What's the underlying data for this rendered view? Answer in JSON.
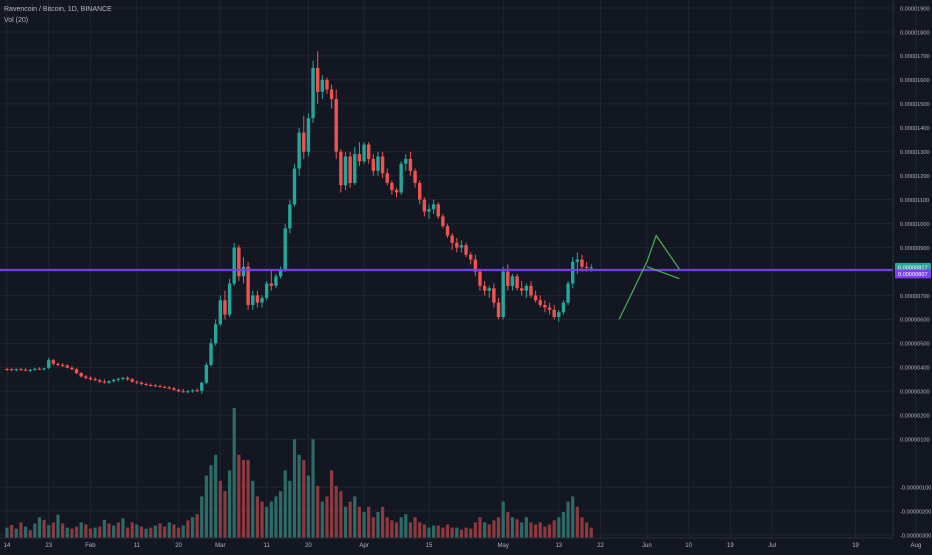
{
  "legend": {
    "title": "Ravencoin / Bitcoin, 1D, BINANCE",
    "indicator": "Vol (20)"
  },
  "colors": {
    "background": "#131722",
    "grid": "#1f2433",
    "up": "#26a69a",
    "down": "#ef5350",
    "vol_up": "#2e6b66",
    "vol_down": "#8b3a3f",
    "hline": "#7b3ff2",
    "pattern": "#4caf50",
    "axis_text": "#b2b5be",
    "price_tag_bg": "#26a69a",
    "line_tag_bg": "#7b3ff2"
  },
  "chart_data": {
    "type": "candlestick",
    "symbol": "Ravencoin / Bitcoin",
    "interval": "1D",
    "exchange": "BINANCE",
    "y_axis_ticks": [
      "0.00001900",
      "0.00001800",
      "0.00001700",
      "0.00001600",
      "0.00001500",
      "0.00001400",
      "0.00001300",
      "0.00001200",
      "0.00001100",
      "0.00001000",
      "0.00000900",
      "0.00000800",
      "0.00000700",
      "0.00000600",
      "0.00000500",
      "0.00000400",
      "0.00000300",
      "0.00000200",
      "0.00000100",
      "-0.00000100",
      "-0.00000200",
      "-0.00000300"
    ],
    "y_tick_values": [
      1900,
      1800,
      1700,
      1600,
      1500,
      1400,
      1300,
      1200,
      1100,
      1000,
      900,
      800,
      700,
      600,
      500,
      400,
      300,
      200,
      100,
      -100,
      -200,
      -300
    ],
    "y_unit": "1e-8 BTC",
    "ylim": [
      -300,
      1950
    ],
    "x_axis_ticks": [
      "14",
      "23",
      "Feb",
      "11",
      "20",
      "Mar",
      "11",
      "20",
      "Apr",
      "15",
      "May",
      "13",
      "22",
      "Jun",
      "10",
      "19",
      "Jul",
      "19",
      "Aug"
    ],
    "x_tick_days": [
      0,
      9,
      18,
      28,
      37,
      46,
      56,
      65,
      77,
      91,
      107,
      119,
      128,
      138,
      147,
      156,
      165,
      183,
      196
    ],
    "x_origin_date": "14 Jan",
    "last_price": "0.00000817",
    "horizontal_line": "0.00000807",
    "horizontal_line_value": 807,
    "pattern": {
      "type": "bull flag",
      "pole": [
        [
          132,
          600
        ],
        [
          138,
          840
        ]
      ],
      "upper": [
        [
          138,
          840
        ],
        [
          140,
          950
        ],
        [
          145,
          810
        ]
      ],
      "lower": [
        [
          138,
          820
        ],
        [
          145,
          770
        ]
      ]
    },
    "ohlc": [
      [
        0,
        393,
        398,
        385,
        392
      ],
      [
        1,
        392,
        396,
        384,
        389
      ],
      [
        2,
        389,
        396,
        383,
        392
      ],
      [
        3,
        392,
        397,
        386,
        390
      ],
      [
        4,
        390,
        396,
        384,
        386
      ],
      [
        5,
        386,
        393,
        380,
        390
      ],
      [
        6,
        390,
        397,
        385,
        394
      ],
      [
        7,
        394,
        400,
        389,
        392
      ],
      [
        8,
        392,
        398,
        387,
        396
      ],
      [
        9,
        398,
        440,
        392,
        430
      ],
      [
        10,
        430,
        435,
        408,
        415
      ],
      [
        11,
        415,
        420,
        405,
        410
      ],
      [
        12,
        410,
        418,
        402,
        408
      ],
      [
        13,
        408,
        412,
        395,
        398
      ],
      [
        14,
        398,
        404,
        388,
        392
      ],
      [
        15,
        392,
        396,
        372,
        376
      ],
      [
        16,
        376,
        380,
        358,
        362
      ],
      [
        17,
        362,
        368,
        350,
        356
      ],
      [
        18,
        356,
        362,
        345,
        350
      ],
      [
        19,
        350,
        358,
        342,
        346
      ],
      [
        20,
        346,
        352,
        335,
        340
      ],
      [
        21,
        340,
        350,
        332,
        336
      ],
      [
        22,
        336,
        346,
        330,
        342
      ],
      [
        23,
        342,
        352,
        336,
        348
      ],
      [
        24,
        348,
        356,
        340,
        352
      ],
      [
        25,
        352,
        360,
        346,
        356
      ],
      [
        26,
        356,
        362,
        344,
        350
      ],
      [
        27,
        350,
        356,
        336,
        340
      ],
      [
        28,
        340,
        346,
        330,
        336
      ],
      [
        29,
        336,
        342,
        325,
        330
      ],
      [
        30,
        330,
        336,
        322,
        326
      ],
      [
        31,
        326,
        332,
        320,
        324
      ],
      [
        32,
        324,
        330,
        318,
        322
      ],
      [
        33,
        322,
        328,
        316,
        318
      ],
      [
        34,
        318,
        324,
        312,
        316
      ],
      [
        35,
        316,
        322,
        308,
        312
      ],
      [
        36,
        312,
        318,
        302,
        306
      ],
      [
        37,
        306,
        312,
        296,
        300
      ],
      [
        38,
        300,
        310,
        294,
        298
      ],
      [
        39,
        298,
        306,
        292,
        300
      ],
      [
        40,
        300,
        308,
        294,
        304
      ],
      [
        41,
        304,
        312,
        296,
        302
      ],
      [
        42,
        302,
        340,
        290,
        336
      ],
      [
        43,
        336,
        420,
        330,
        410
      ],
      [
        44,
        410,
        520,
        404,
        500
      ],
      [
        45,
        500,
        600,
        490,
        580
      ],
      [
        46,
        580,
        700,
        572,
        680
      ],
      [
        47,
        680,
        720,
        600,
        620
      ],
      [
        48,
        620,
        770,
        610,
        750
      ],
      [
        49,
        750,
        920,
        740,
        900
      ],
      [
        50,
        900,
        910,
        760,
        780
      ],
      [
        51,
        780,
        860,
        750,
        820
      ],
      [
        52,
        820,
        840,
        640,
        660
      ],
      [
        53,
        660,
        720,
        640,
        700
      ],
      [
        54,
        700,
        720,
        650,
        670
      ],
      [
        55,
        670,
        700,
        650,
        690
      ],
      [
        56,
        690,
        760,
        680,
        750
      ],
      [
        57,
        750,
        810,
        720,
        740
      ],
      [
        58,
        740,
        790,
        730,
        780
      ],
      [
        59,
        780,
        820,
        770,
        810
      ],
      [
        60,
        810,
        1000,
        800,
        980
      ],
      [
        61,
        980,
        1100,
        960,
        1080
      ],
      [
        62,
        1080,
        1250,
        1070,
        1230
      ],
      [
        63,
        1230,
        1400,
        1200,
        1380
      ],
      [
        64,
        1380,
        1450,
        1270,
        1300
      ],
      [
        65,
        1300,
        1460,
        1280,
        1440
      ],
      [
        66,
        1440,
        1680,
        1420,
        1650
      ],
      [
        67,
        1650,
        1720,
        1500,
        1550
      ],
      [
        68,
        1550,
        1620,
        1520,
        1600
      ],
      [
        69,
        1600,
        1610,
        1540,
        1560
      ],
      [
        70,
        1560,
        1580,
        1480,
        1520
      ],
      [
        71,
        1520,
        1560,
        1270,
        1300
      ],
      [
        72,
        1300,
        1310,
        1130,
        1160
      ],
      [
        73,
        1160,
        1300,
        1140,
        1280
      ],
      [
        74,
        1280,
        1300,
        1150,
        1170
      ],
      [
        75,
        1170,
        1320,
        1160,
        1290
      ],
      [
        76,
        1290,
        1340,
        1240,
        1260
      ],
      [
        77,
        1260,
        1340,
        1250,
        1330
      ],
      [
        78,
        1330,
        1340,
        1250,
        1270
      ],
      [
        79,
        1270,
        1290,
        1200,
        1220
      ],
      [
        80,
        1220,
        1300,
        1200,
        1280
      ],
      [
        81,
        1280,
        1300,
        1190,
        1210
      ],
      [
        82,
        1210,
        1230,
        1160,
        1170
      ],
      [
        83,
        1170,
        1180,
        1120,
        1140
      ],
      [
        84,
        1140,
        1150,
        1110,
        1130
      ],
      [
        85,
        1130,
        1260,
        1120,
        1250
      ],
      [
        86,
        1250,
        1290,
        1220,
        1270
      ],
      [
        87,
        1270,
        1300,
        1200,
        1220
      ],
      [
        88,
        1220,
        1230,
        1150,
        1170
      ],
      [
        89,
        1170,
        1180,
        1080,
        1100
      ],
      [
        90,
        1100,
        1110,
        1030,
        1050
      ],
      [
        91,
        1050,
        1080,
        1020,
        1060
      ],
      [
        92,
        1060,
        1100,
        1040,
        1080
      ],
      [
        93,
        1080,
        1090,
        1020,
        1030
      ],
      [
        94,
        1030,
        1040,
        980,
        990
      ],
      [
        95,
        990,
        1000,
        940,
        950
      ],
      [
        96,
        950,
        960,
        890,
        920
      ],
      [
        97,
        920,
        940,
        880,
        900
      ],
      [
        98,
        900,
        930,
        880,
        910
      ],
      [
        99,
        910,
        920,
        860,
        870
      ],
      [
        100,
        870,
        880,
        830,
        850
      ],
      [
        101,
        850,
        870,
        780,
        800
      ],
      [
        102,
        800,
        810,
        720,
        740
      ],
      [
        103,
        740,
        760,
        700,
        720
      ],
      [
        104,
        720,
        740,
        690,
        730
      ],
      [
        105,
        730,
        750,
        650,
        670
      ],
      [
        106,
        670,
        690,
        600,
        610
      ],
      [
        107,
        610,
        820,
        600,
        800
      ],
      [
        108,
        800,
        830,
        720,
        740
      ],
      [
        109,
        740,
        790,
        720,
        780
      ],
      [
        110,
        780,
        790,
        720,
        730
      ],
      [
        111,
        730,
        760,
        700,
        720
      ],
      [
        112,
        720,
        750,
        690,
        740
      ],
      [
        113,
        740,
        760,
        690,
        700
      ],
      [
        114,
        700,
        720,
        670,
        680
      ],
      [
        115,
        680,
        700,
        650,
        660
      ],
      [
        116,
        660,
        680,
        630,
        650
      ],
      [
        117,
        650,
        670,
        620,
        640
      ],
      [
        118,
        640,
        660,
        600,
        610
      ],
      [
        119,
        610,
        640,
        590,
        630
      ],
      [
        120,
        630,
        680,
        620,
        670
      ],
      [
        121,
        670,
        760,
        660,
        750
      ],
      [
        122,
        750,
        860,
        730,
        840
      ],
      [
        123,
        840,
        880,
        790,
        850
      ],
      [
        124,
        850,
        870,
        800,
        820
      ],
      [
        125,
        820,
        840,
        800,
        815
      ],
      [
        126,
        815,
        830,
        800,
        817
      ]
    ],
    "volume": [
      [
        0,
        20,
        0
      ],
      [
        1,
        25,
        1
      ],
      [
        2,
        18,
        0
      ],
      [
        3,
        30,
        1
      ],
      [
        4,
        22,
        0
      ],
      [
        5,
        15,
        1
      ],
      [
        6,
        28,
        0
      ],
      [
        7,
        40,
        0
      ],
      [
        8,
        35,
        1
      ],
      [
        9,
        25,
        0
      ],
      [
        10,
        30,
        1
      ],
      [
        11,
        45,
        0
      ],
      [
        12,
        28,
        1
      ],
      [
        13,
        20,
        0
      ],
      [
        14,
        18,
        1
      ],
      [
        15,
        22,
        1
      ],
      [
        16,
        30,
        0
      ],
      [
        17,
        26,
        1
      ],
      [
        18,
        18,
        1
      ],
      [
        19,
        20,
        0
      ],
      [
        20,
        22,
        1
      ],
      [
        21,
        35,
        0
      ],
      [
        22,
        28,
        1
      ],
      [
        23,
        24,
        0
      ],
      [
        24,
        30,
        1
      ],
      [
        25,
        38,
        0
      ],
      [
        26,
        20,
        1
      ],
      [
        27,
        30,
        1
      ],
      [
        28,
        26,
        0
      ],
      [
        29,
        22,
        1
      ],
      [
        30,
        18,
        0
      ],
      [
        31,
        20,
        1
      ],
      [
        32,
        24,
        0
      ],
      [
        33,
        28,
        1
      ],
      [
        34,
        22,
        1
      ],
      [
        35,
        30,
        0
      ],
      [
        36,
        26,
        1
      ],
      [
        37,
        20,
        1
      ],
      [
        38,
        24,
        0
      ],
      [
        39,
        34,
        1
      ],
      [
        40,
        40,
        0
      ],
      [
        41,
        46,
        1
      ],
      [
        42,
        80,
        0
      ],
      [
        43,
        120,
        0
      ],
      [
        44,
        140,
        0
      ],
      [
        45,
        160,
        0
      ],
      [
        46,
        110,
        1
      ],
      [
        47,
        90,
        1
      ],
      [
        48,
        130,
        0
      ],
      [
        49,
        250,
        0
      ],
      [
        50,
        160,
        1
      ],
      [
        51,
        150,
        1
      ],
      [
        52,
        150,
        1
      ],
      [
        53,
        110,
        0
      ],
      [
        54,
        80,
        1
      ],
      [
        55,
        70,
        1
      ],
      [
        56,
        60,
        0
      ],
      [
        57,
        70,
        0
      ],
      [
        58,
        80,
        0
      ],
      [
        59,
        90,
        0
      ],
      [
        60,
        130,
        0
      ],
      [
        61,
        110,
        0
      ],
      [
        62,
        190,
        0
      ],
      [
        63,
        160,
        0
      ],
      [
        64,
        150,
        1
      ],
      [
        65,
        120,
        0
      ],
      [
        66,
        190,
        0
      ],
      [
        67,
        100,
        1
      ],
      [
        68,
        70,
        0
      ],
      [
        69,
        80,
        1
      ],
      [
        70,
        130,
        1
      ],
      [
        71,
        100,
        1
      ],
      [
        72,
        90,
        1
      ],
      [
        73,
        60,
        0
      ],
      [
        74,
        70,
        1
      ],
      [
        75,
        80,
        0
      ],
      [
        76,
        60,
        1
      ],
      [
        77,
        50,
        0
      ],
      [
        78,
        60,
        1
      ],
      [
        79,
        40,
        1
      ],
      [
        80,
        50,
        0
      ],
      [
        81,
        60,
        1
      ],
      [
        82,
        40,
        1
      ],
      [
        83,
        34,
        1
      ],
      [
        84,
        30,
        1
      ],
      [
        85,
        40,
        0
      ],
      [
        86,
        46,
        0
      ],
      [
        87,
        30,
        1
      ],
      [
        88,
        40,
        1
      ],
      [
        89,
        30,
        1
      ],
      [
        90,
        26,
        1
      ],
      [
        91,
        20,
        0
      ],
      [
        92,
        24,
        0
      ],
      [
        93,
        24,
        1
      ],
      [
        94,
        20,
        1
      ],
      [
        95,
        26,
        1
      ],
      [
        96,
        20,
        1
      ],
      [
        97,
        20,
        0
      ],
      [
        98,
        16,
        1
      ],
      [
        99,
        20,
        1
      ],
      [
        100,
        18,
        1
      ],
      [
        101,
        30,
        1
      ],
      [
        102,
        40,
        1
      ],
      [
        103,
        30,
        0
      ],
      [
        104,
        26,
        1
      ],
      [
        105,
        34,
        1
      ],
      [
        106,
        40,
        1
      ],
      [
        107,
        70,
        0
      ],
      [
        108,
        50,
        1
      ],
      [
        109,
        40,
        0
      ],
      [
        110,
        36,
        1
      ],
      [
        111,
        30,
        0
      ],
      [
        112,
        40,
        0
      ],
      [
        113,
        30,
        1
      ],
      [
        114,
        26,
        1
      ],
      [
        115,
        30,
        1
      ],
      [
        116,
        22,
        1
      ],
      [
        117,
        26,
        1
      ],
      [
        118,
        34,
        1
      ],
      [
        119,
        40,
        0
      ],
      [
        120,
        50,
        0
      ],
      [
        121,
        70,
        0
      ],
      [
        122,
        80,
        0
      ],
      [
        123,
        60,
        1
      ],
      [
        124,
        40,
        1
      ],
      [
        125,
        30,
        1
      ],
      [
        126,
        20,
        1
      ]
    ]
  }
}
